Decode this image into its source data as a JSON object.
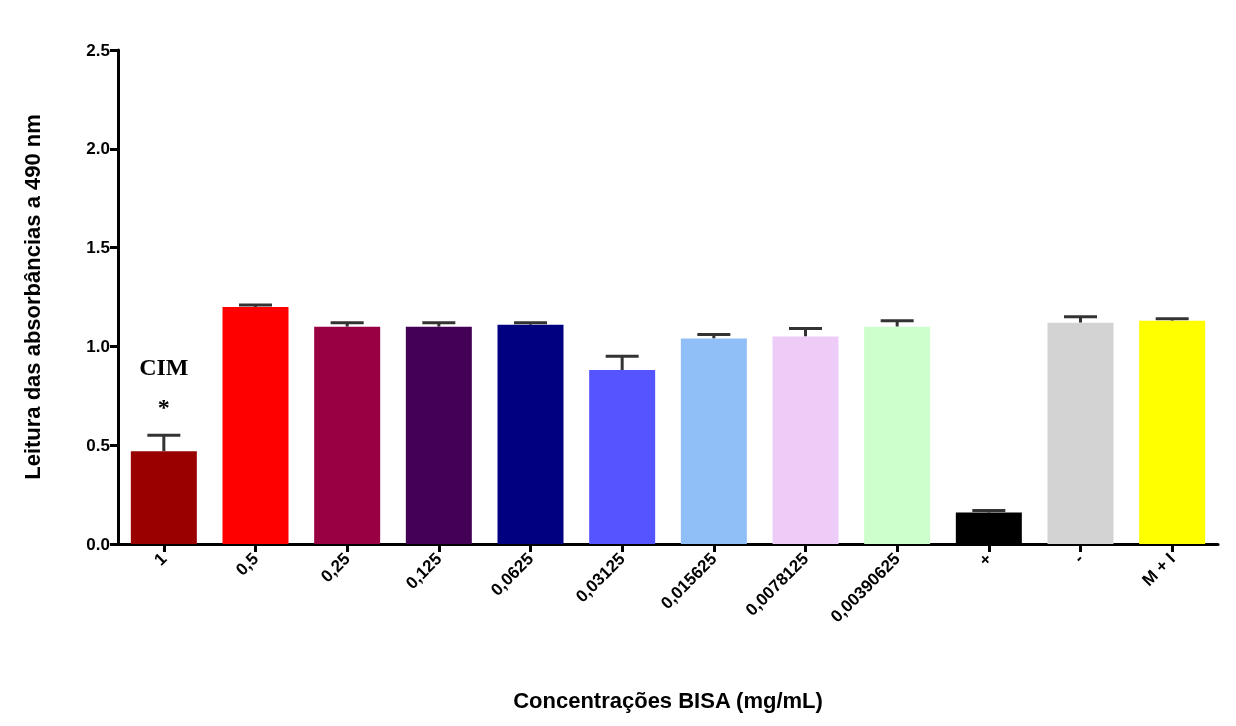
{
  "chart_data": {
    "type": "bar",
    "xlabel": "Concentrações BISA (mg/mL)",
    "ylabel": "Leitura das absorbâncias a 490 nm",
    "categories": [
      "1",
      "0,5",
      "0,25",
      "0,125",
      "0,0625",
      "0,03125",
      "0,015625",
      "0,0078125",
      "0,00390625",
      "+",
      "-",
      "M + I"
    ],
    "values": [
      0.47,
      1.2,
      1.1,
      1.1,
      1.11,
      0.88,
      1.04,
      1.05,
      1.1,
      0.16,
      1.12,
      1.13
    ],
    "errors": [
      [
        0.47,
        0.55
      ],
      [
        1.2,
        1.21
      ],
      [
        1.1,
        1.12
      ],
      [
        1.1,
        1.12
      ],
      [
        1.11,
        1.12
      ],
      [
        0.88,
        0.95
      ],
      [
        1.04,
        1.06
      ],
      [
        1.05,
        1.09
      ],
      [
        1.1,
        1.13
      ],
      [
        0.16,
        0.17
      ],
      [
        1.12,
        1.15
      ],
      [
        1.13,
        1.14
      ]
    ],
    "colors": [
      "#990000",
      "#ff0000",
      "#990044",
      "#440055",
      "#000080",
      "#5555ff",
      "#90bff8",
      "#eeccf8",
      "#ccffcc",
      "#000000",
      "#d3d3d3",
      "#ffff00"
    ],
    "ylim": [
      0,
      2.5
    ],
    "yticks": [
      {
        "value": 0,
        "label": "0.0"
      },
      {
        "value": 0.5,
        "label": "0.5"
      },
      {
        "value": 1,
        "label": "1.0"
      },
      {
        "value": 1.5,
        "label": "1.5"
      },
      {
        "value": 2,
        "label": "2.0"
      },
      {
        "value": 2.5,
        "label": "2.5"
      }
    ],
    "annotations": [
      "CIM",
      "*"
    ],
    "grid": false
  }
}
